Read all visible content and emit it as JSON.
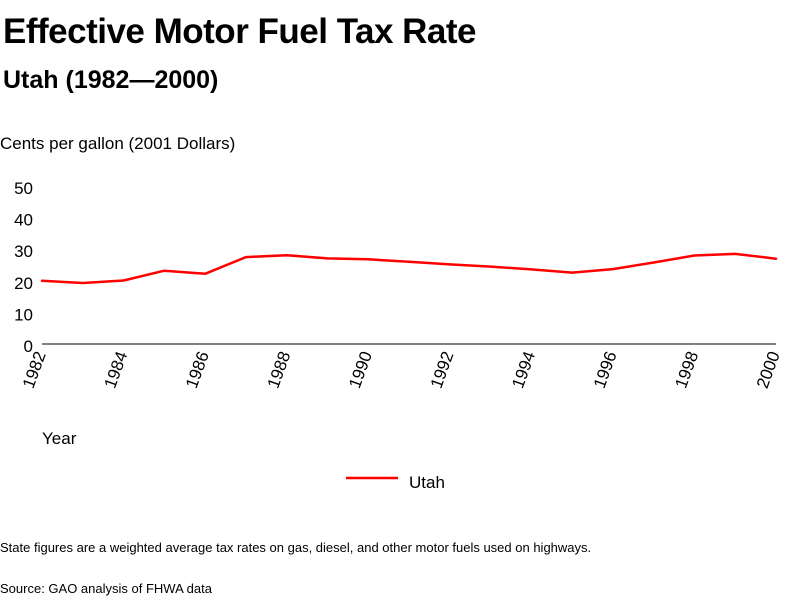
{
  "header": {
    "title": "Effective Motor Fuel Tax Rate",
    "subtitle": "Utah (1982—2000)"
  },
  "footer": {
    "note": "State figures are a weighted average tax rates on gas, diesel, and other motor fuels used on highways.",
    "source": "Source: GAO analysis of FHWA data"
  },
  "chart_data": {
    "type": "line",
    "title": "Effective Motor Fuel Tax Rate",
    "subtitle": "Utah (1982—2000)",
    "ylabel": "Cents per gallon (2001 Dollars)",
    "xlabel": "Year",
    "ylim": [
      0,
      50
    ],
    "yticks": [
      0,
      10,
      20,
      30,
      40,
      50
    ],
    "xlim": [
      1982,
      2000
    ],
    "xticks": [
      1982,
      1984,
      1986,
      1988,
      1990,
      1992,
      1994,
      1996,
      1998,
      2000
    ],
    "grid": false,
    "legend_position": "bottom-center",
    "series": [
      {
        "name": "Utah",
        "color": "#ff0000",
        "x": [
          1982,
          1983,
          1984,
          1985,
          1986,
          1987,
          1988,
          1989,
          1990,
          1991,
          1992,
          1993,
          1994,
          1995,
          1996,
          1997,
          1998,
          1999,
          2000
        ],
        "values": [
          20,
          19.3,
          20.1,
          23.2,
          22.2,
          27.5,
          28.1,
          27.1,
          26.8,
          26,
          25.2,
          24.5,
          23.6,
          22.6,
          23.7,
          25.8,
          28,
          28.5,
          27
        ]
      }
    ]
  }
}
